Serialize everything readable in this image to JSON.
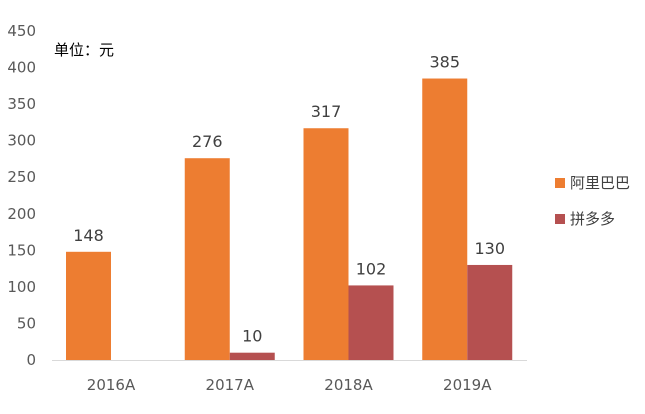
{
  "chart_data": {
    "type": "bar",
    "unit_label": "单位：元",
    "categories": [
      "2016A",
      "2017A",
      "2018A",
      "2019A"
    ],
    "series": [
      {
        "name": "阿里巴巴",
        "values": [
          148,
          276,
          317,
          385
        ],
        "color": "#ED7D31"
      },
      {
        "name": "拼多多",
        "values": [
          null,
          10,
          102,
          130
        ],
        "color": "#B55050"
      }
    ],
    "ylim": [
      0,
      450
    ],
    "yticks": [
      0,
      50,
      100,
      150,
      200,
      250,
      300,
      350,
      400,
      450
    ],
    "grid": false,
    "legend": "right"
  }
}
